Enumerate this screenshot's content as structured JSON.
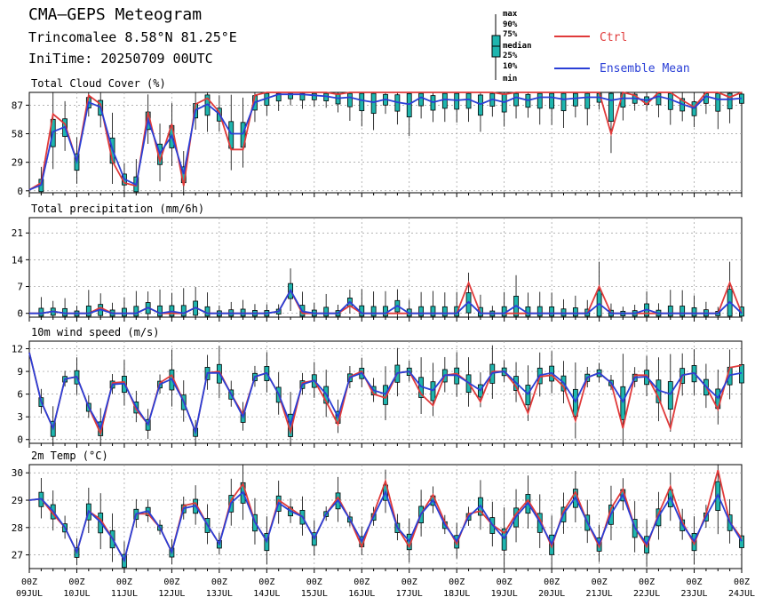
{
  "header": {
    "title": "CMA—GEPS Meteogram",
    "location": "Trincomalee 8.58°N 81.25°E",
    "init_time": "IniTime: 20250709 00UTC"
  },
  "legend": {
    "box_labels": [
      "max",
      "90%",
      "75%",
      "median",
      "25%",
      "10%",
      "min"
    ],
    "ctrl_label": "Ctrl",
    "mean_label": "Ensemble Mean",
    "ctrl_color": "#e03a3a",
    "mean_color": "#2a3fd6",
    "box_color": "#1fb5ae"
  },
  "x_axis": {
    "hour_label": "00Z",
    "day_labels": [
      "09JUL",
      "10JUL",
      "11JUL",
      "12JUL",
      "13JUL",
      "14JUL",
      "15JUL",
      "16JUL",
      "17JUL",
      "18JUL",
      "19JUL",
      "20JUL",
      "21JUL",
      "22JUL",
      "23JUL",
      "24JUL"
    ],
    "step_hours": 6
  },
  "chart_data": [
    {
      "type": "line",
      "title": "Total Cloud Cover (%)",
      "yticks": [
        0,
        29,
        58,
        87
      ],
      "ylim": [
        -2,
        100
      ],
      "series": [
        {
          "name": "Ctrl",
          "values": [
            1,
            8,
            78,
            68,
            30,
            97,
            88,
            30,
            8,
            5,
            80,
            30,
            68,
            5,
            88,
            94,
            80,
            42,
            42,
            97,
            100,
            100,
            100,
            100,
            100,
            100,
            98,
            100,
            100,
            100,
            100,
            100,
            100,
            100,
            100,
            100,
            100,
            100,
            100,
            100,
            98,
            100,
            100,
            100,
            100,
            100,
            100,
            100,
            100,
            58,
            100,
            97,
            88,
            100,
            100,
            92,
            85,
            100,
            100,
            95,
            100
          ]
        },
        {
          "name": "Ensemble Mean",
          "values": [
            1,
            6,
            60,
            65,
            30,
            90,
            85,
            42,
            12,
            6,
            72,
            38,
            56,
            17,
            82,
            88,
            78,
            58,
            58,
            90,
            94,
            98,
            98,
            98,
            97,
            96,
            94,
            95,
            92,
            90,
            93,
            90,
            88,
            95,
            90,
            93,
            92,
            93,
            88,
            93,
            90,
            95,
            92,
            95,
            95,
            93,
            94,
            95,
            95,
            92,
            94,
            94,
            92,
            96,
            93,
            88,
            84,
            96,
            93,
            93,
            94
          ]
        }
      ]
    },
    {
      "type": "line",
      "title": "Total precipitation (mm/6h)",
      "yticks": [
        0,
        7,
        14,
        21
      ],
      "ylim": [
        -1,
        25
      ],
      "series": [
        {
          "name": "Ctrl",
          "values": [
            0,
            0,
            0.5,
            0,
            0,
            0,
            1.5,
            0,
            0,
            0,
            1.5,
            0,
            0,
            0,
            1.5,
            0,
            0,
            0,
            0,
            0,
            0,
            0.5,
            6,
            0,
            0,
            0,
            0,
            2,
            0,
            0,
            0,
            0,
            0,
            0,
            0,
            0,
            0,
            8,
            0,
            0,
            0,
            0,
            0,
            0,
            0,
            0,
            0,
            0,
            7,
            0,
            0,
            0,
            0,
            0,
            0,
            0,
            0,
            0,
            0,
            8,
            0
          ]
        },
        {
          "name": "Ensemble Mean",
          "values": [
            0,
            0,
            0.5,
            0,
            0,
            0,
            1,
            0,
            0,
            0,
            1.5,
            0,
            0.5,
            0,
            1.5,
            0,
            0,
            0,
            0,
            0,
            0,
            0.5,
            6,
            0.5,
            0,
            0,
            0,
            3,
            0,
            0,
            0,
            2,
            0,
            0,
            0,
            0,
            0,
            3,
            0,
            0,
            0,
            2,
            0,
            0,
            0,
            0,
            0,
            0,
            2.5,
            0,
            0,
            0,
            1,
            0,
            0,
            0,
            0,
            0,
            0,
            3,
            0
          ]
        }
      ]
    },
    {
      "type": "line",
      "title": "10m wind speed (m/s)",
      "yticks": [
        0,
        3,
        6,
        9,
        12
      ],
      "ylim": [
        -0.5,
        13
      ],
      "series": [
        {
          "name": "Ctrl",
          "values": [
            11.5,
            5,
            1.5,
            8,
            8.3,
            4.3,
            0.8,
            7.5,
            7.6,
            4,
            2,
            7.5,
            8.5,
            5,
            1,
            8.8,
            9,
            6,
            3.3,
            8.3,
            8.8,
            6,
            1,
            7.5,
            7.8,
            5,
            2,
            8.3,
            9,
            6,
            5.5,
            8.8,
            9,
            6,
            4.5,
            8.5,
            8.7,
            7.5,
            5,
            9,
            9,
            7,
            3.5,
            8.3,
            8.5,
            7,
            2.5,
            8.2,
            8.8,
            7.5,
            1.5,
            8.5,
            8.5,
            5.5,
            1.5,
            8.5,
            8.8,
            7,
            4,
            9.5,
            9.8
          ]
        },
        {
          "name": "Ensemble Mean",
          "values": [
            11.5,
            5,
            1.5,
            8,
            8.3,
            4.3,
            1.5,
            7.3,
            7.4,
            4.3,
            2,
            7.3,
            8,
            5,
            1,
            8.8,
            8.8,
            6,
            3,
            8.3,
            8.8,
            6,
            2,
            7.3,
            7.8,
            6,
            3,
            8.2,
            8.8,
            6.5,
            6,
            8.8,
            9,
            7,
            6.5,
            8.5,
            8.5,
            7.5,
            6.5,
            8.8,
            9,
            7.5,
            6,
            8.5,
            8.8,
            7.5,
            5,
            8.2,
            8.8,
            7.5,
            5,
            8.2,
            8.3,
            6.5,
            6,
            8.5,
            8.8,
            7,
            5.5,
            8.5,
            8.8
          ]
        }
      ]
    },
    {
      "type": "line",
      "title": "2m Temp (°C)",
      "yticks": [
        27,
        28,
        29,
        30
      ],
      "ylim": [
        26.5,
        30.3
      ],
      "series": [
        {
          "name": "Ctrl",
          "values": [
            29,
            29.05,
            28.5,
            28,
            27.1,
            28.6,
            28.3,
            27.6,
            26.8,
            28.5,
            28.5,
            28,
            27.1,
            28.8,
            28.9,
            28.1,
            27.4,
            29,
            29.6,
            28.2,
            27.5,
            29,
            28.7,
            28.4,
            27.6,
            28.5,
            29.1,
            28.3,
            27.3,
            28.5,
            29.7,
            28,
            27.3,
            28.5,
            29.2,
            28.2,
            27.4,
            28.5,
            28.6,
            28.1,
            27.8,
            28.5,
            29,
            28.3,
            27.3,
            28.6,
            29.3,
            28.2,
            27.3,
            28.7,
            29.4,
            28,
            27.3,
            28.5,
            29.5,
            28.2,
            27.4,
            28.5,
            30.1,
            28.2,
            27.6
          ]
        },
        {
          "name": "Ensemble Mean",
          "values": [
            29,
            29.05,
            28.6,
            28,
            27.1,
            28.6,
            28.2,
            27.6,
            26.8,
            28.5,
            28.6,
            28,
            27.1,
            28.7,
            28.8,
            28.1,
            27.4,
            28.9,
            29.3,
            28.2,
            27.5,
            28.9,
            28.6,
            28.4,
            27.6,
            28.5,
            29,
            28.3,
            27.5,
            28.4,
            29.3,
            28,
            27.5,
            28.5,
            29,
            28.1,
            27.5,
            28.4,
            28.8,
            28.1,
            27.6,
            28.4,
            28.9,
            28.2,
            27.4,
            28.5,
            29.1,
            28.2,
            27.4,
            28.5,
            29.2,
            28,
            27.4,
            28.4,
            29.1,
            28.1,
            27.5,
            28.4,
            29.2,
            28.2,
            27.5
          ]
        }
      ]
    }
  ]
}
